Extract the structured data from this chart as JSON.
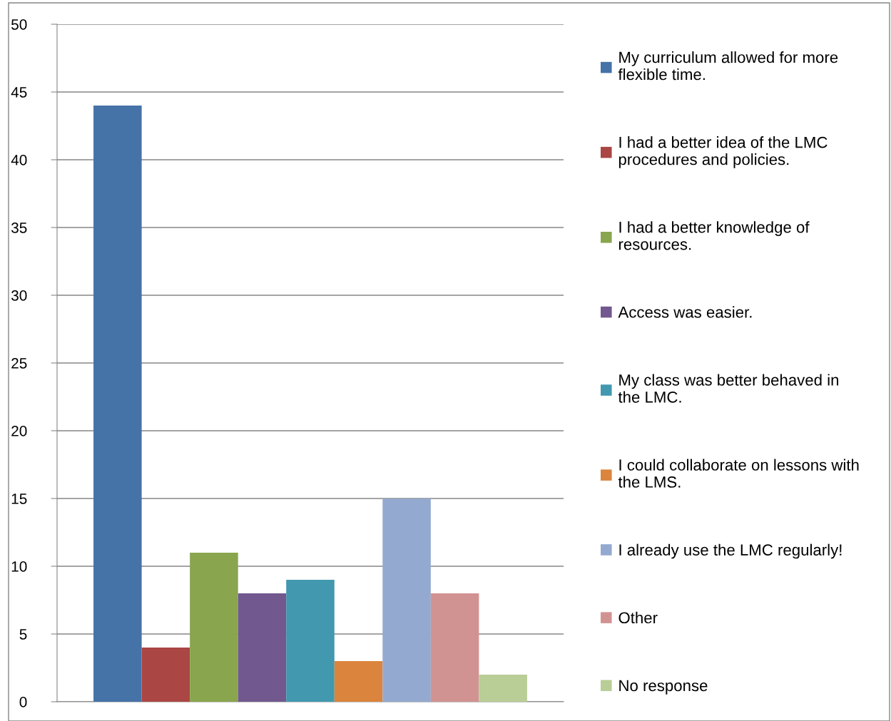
{
  "chart_data": {
    "type": "bar",
    "categories": [
      null
    ],
    "series": [
      {
        "name": "My curriculum allowed for more flexible time.",
        "color": "#4572a7",
        "values": [
          44
        ]
      },
      {
        "name": "I had a better idea of the LMC procedures and policies.",
        "color": "#aa4643",
        "values": [
          4
        ]
      },
      {
        "name": "I had a better knowledge of resources.",
        "color": "#89a54e",
        "values": [
          11
        ]
      },
      {
        "name": "Access was easier.",
        "color": "#71588f",
        "values": [
          8
        ]
      },
      {
        "name": "My class was better behaved in the LMC.",
        "color": "#4198af",
        "values": [
          9
        ]
      },
      {
        "name": "I could collaborate on lessons with the LMS.",
        "color": "#db843d",
        "values": [
          3
        ]
      },
      {
        "name": "I already use the LMC regularly!",
        "color": "#93a9cf",
        "values": [
          15
        ]
      },
      {
        "name": "Other",
        "color": "#d19392",
        "values": [
          8
        ]
      },
      {
        "name": "No response",
        "color": "#b9cd96",
        "values": [
          2
        ]
      }
    ],
    "ylim": [
      0,
      50
    ],
    "yticks": [
      0,
      5,
      10,
      15,
      20,
      25,
      30,
      35,
      40,
      45,
      50
    ],
    "grid": "y",
    "legend": "right"
  }
}
